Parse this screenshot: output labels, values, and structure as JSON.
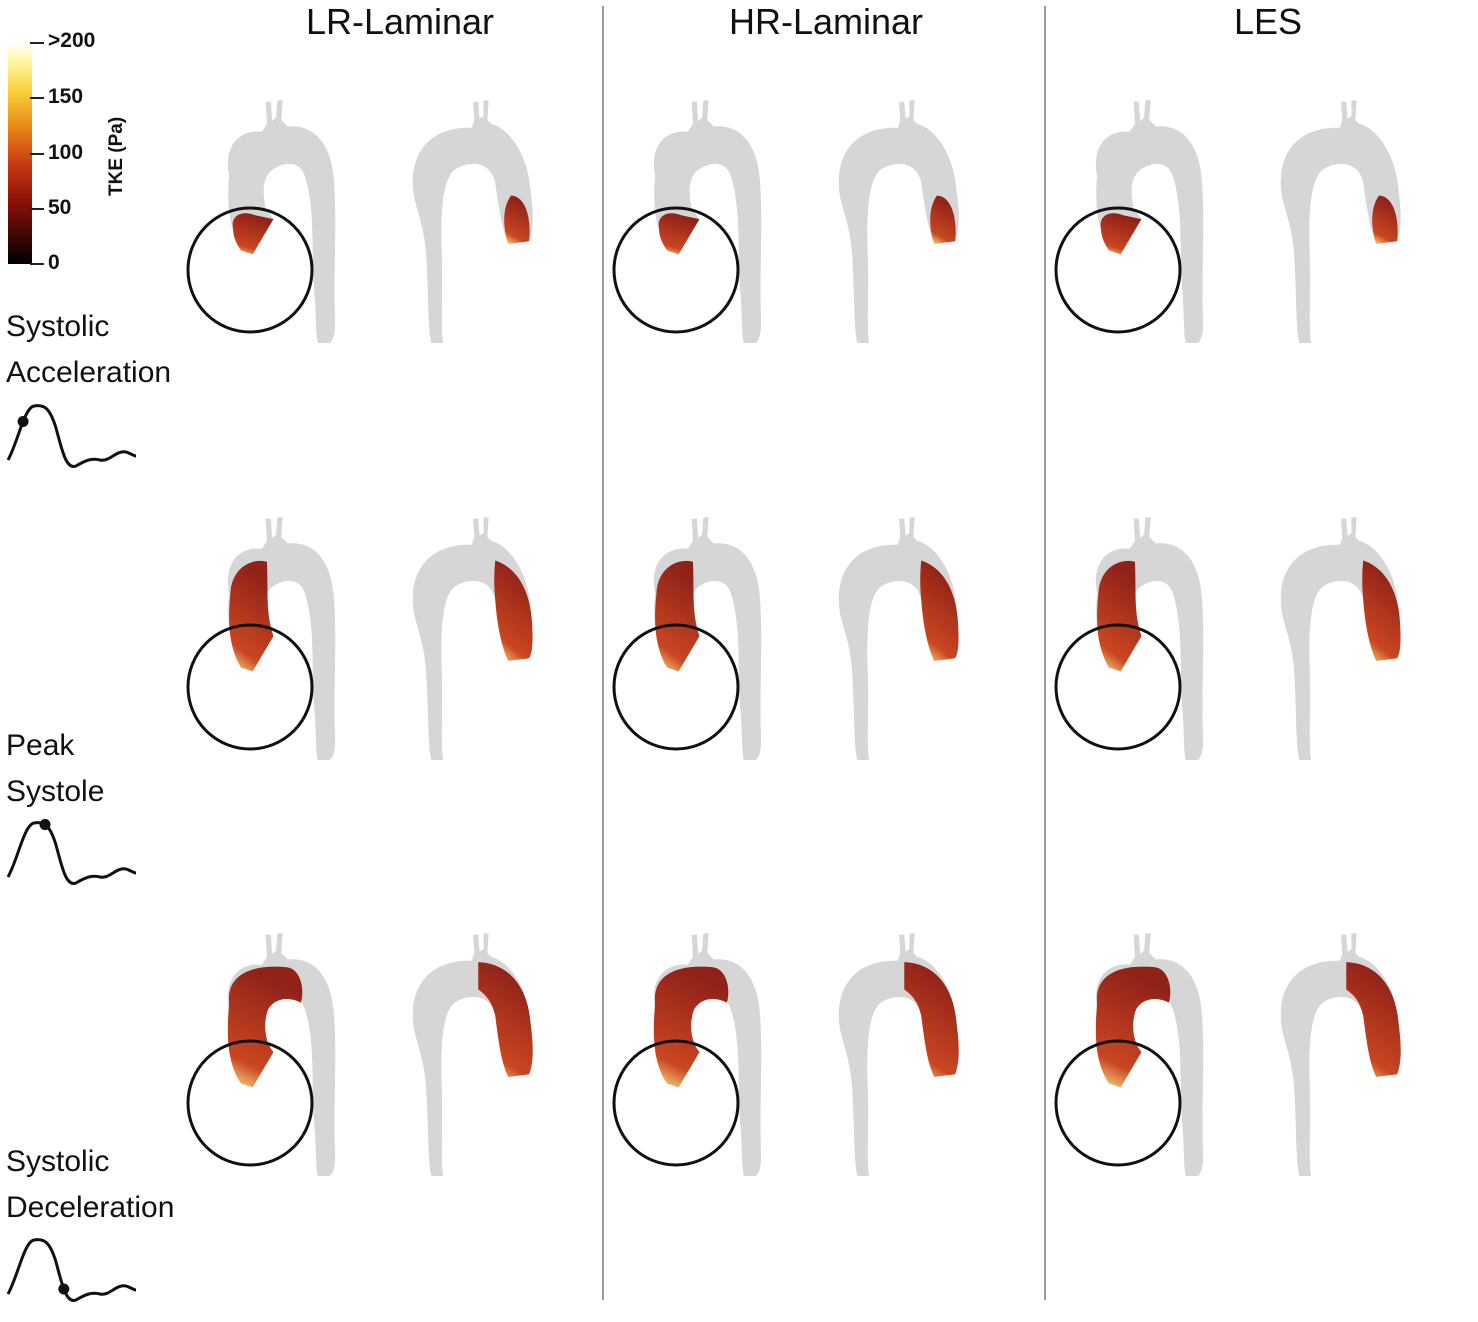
{
  "columns": [
    {
      "title": "LR-Laminar"
    },
    {
      "title": "HR-Laminar"
    },
    {
      "title": "LES"
    }
  ],
  "colorbar": {
    "title": "TKE (Pa)",
    "ticks": [
      ">200",
      "150",
      "100",
      "50",
      "0"
    ],
    "colors": [
      "#ffffff",
      "#f8d23a",
      "#e98a18",
      "#c93a12",
      "#8a1208",
      "#000000"
    ]
  },
  "rows": [
    {
      "line1": "Systolic",
      "line2": "Acceleration",
      "phase_marker": 0.2
    },
    {
      "line1": "Peak",
      "line2": "Systole",
      "phase_marker": 0.35
    },
    {
      "line1": "Systolic",
      "line2": "Deceleration",
      "phase_marker": 0.6
    }
  ],
  "colors": {
    "aorta_gray": "#8a8a8a",
    "tke_dark": "#8a1208",
    "tke_mid": "#c93a12",
    "tke_bright": "#ffe680",
    "divider": "#9a9a9a"
  }
}
